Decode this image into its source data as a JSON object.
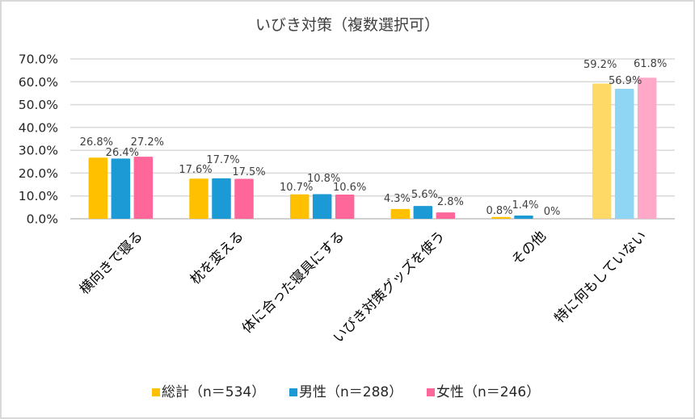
{
  "chart_data": {
    "type": "bar",
    "title": "いびき対策（複数選択可）",
    "xlabel": "",
    "ylabel": "",
    "ylim": [
      0,
      70
    ],
    "yticks": [
      0,
      10,
      20,
      30,
      40,
      50,
      60,
      70
    ],
    "ytick_labels": [
      "0.0%",
      "10.0%",
      "20.0%",
      "30.0%",
      "40.0%",
      "50.0%",
      "60.0%",
      "70.0%"
    ],
    "grid": true,
    "legend_position": "bottom",
    "categories": [
      "横向きで寝る",
      "枕を変える",
      "体に合った寝具にする",
      "いびき対策グッズを使う",
      "その他",
      "特に何もしていない"
    ],
    "series": [
      {
        "name": "総計（n＝534）",
        "color": "#FFC000",
        "highlight_color": "#FFD966",
        "values": [
          26.8,
          17.6,
          10.7,
          4.3,
          0.8,
          59.2
        ],
        "labels": [
          "26.8%",
          "17.6%",
          "10.7%",
          "4.3%",
          "0.8%",
          "59.2%"
        ]
      },
      {
        "name": "男性（n＝288）",
        "color": "#1C9AD6",
        "highlight_color": "#8FD6F5",
        "values": [
          26.4,
          17.7,
          10.8,
          5.6,
          1.4,
          56.9
        ],
        "labels": [
          "26.4%",
          "17.7%",
          "10.8%",
          "5.6%",
          "1.4%",
          "56.9%"
        ]
      },
      {
        "name": "女性（n＝246）",
        "color": "#FF6699",
        "highlight_color": "#FFA8C8",
        "values": [
          27.2,
          17.5,
          10.6,
          2.8,
          0,
          61.8
        ],
        "labels": [
          "27.2%",
          "17.5%",
          "10.6%",
          "2.8%",
          "0%",
          "61.8%"
        ]
      }
    ],
    "highlighted_category_index": 5,
    "legend": [
      "総計（n＝534）",
      "男性（n＝288）",
      "女性（n＝246）"
    ]
  }
}
